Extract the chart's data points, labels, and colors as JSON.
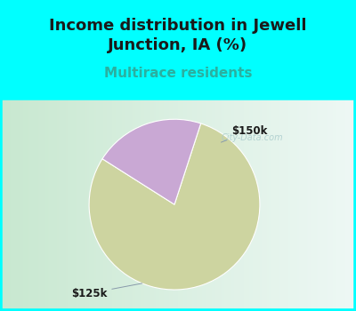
{
  "title": "Income distribution in Jewell\nJunction, IA (%)",
  "subtitle": "Multirace residents",
  "slices": [
    {
      "label": "$125k",
      "value": 79,
      "color": "#cdd4a0"
    },
    {
      "label": "$150k",
      "value": 21,
      "color": "#c9a8d4"
    }
  ],
  "title_color": "#1a1a1a",
  "subtitle_color": "#2ab0a0",
  "top_bg_color": "#00ffff",
  "title_fontsize": 13,
  "subtitle_fontsize": 11,
  "label_fontsize": 8.5,
  "watermark_text": "City-Data.com",
  "watermark_color": "#aacccc",
  "startangle": 72,
  "chart_border_color": "#00ffff",
  "chart_bg_left": "#c8e8d0",
  "chart_bg_right": "#eef8f5"
}
